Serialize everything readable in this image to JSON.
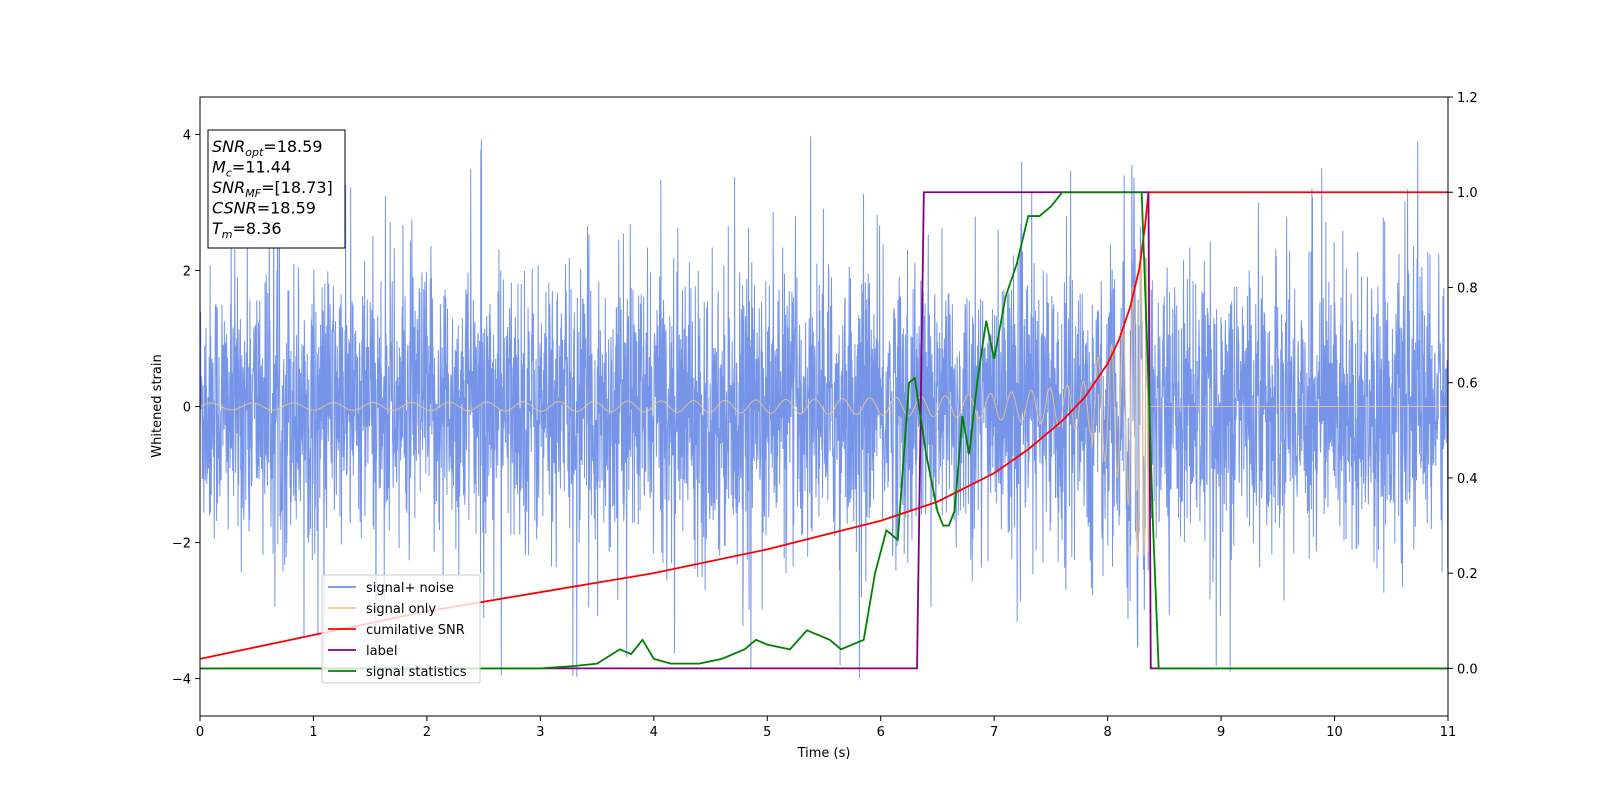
{
  "chart_data": {
    "type": "line",
    "xlabel": "Time (s)",
    "ylabel": "Whitened strain",
    "xlim": [
      0,
      11
    ],
    "ylim_left": [
      -4.55,
      4.55
    ],
    "ylim_right": [
      -0.1,
      1.2
    ],
    "x_ticks": [
      "0",
      "1",
      "2",
      "3",
      "4",
      "5",
      "6",
      "7",
      "8",
      "9",
      "10",
      "11"
    ],
    "y_ticks_left": [
      "4",
      "2",
      "0",
      "−2",
      "−4"
    ],
    "y_ticks_left_values": [
      4,
      2,
      0,
      -2,
      -4
    ],
    "y_ticks_right": [
      "1.2",
      "1.0",
      "0.8",
      "0.6",
      "0.4",
      "0.2",
      "0.0"
    ],
    "y_ticks_right_values": [
      1.2,
      1.0,
      0.8,
      0.6,
      0.4,
      0.2,
      0.0
    ],
    "grid": false,
    "legend_placement": "lower-left",
    "series": [
      {
        "name": "signal+ noise",
        "color": "#6f8fe8",
        "axis": "left",
        "description_values": {
          "noise_amplitude_typical": 1.3,
          "noise_amplitude_peak": 3.9,
          "merger_time": 8.36
        }
      },
      {
        "name": "signal only",
        "color": "#f5c77e",
        "axis": "left",
        "chirp": {
          "start_amplitude": 0.05,
          "peak_amplitude": 2.2,
          "merger_time": 8.36
        }
      },
      {
        "name": "cumilative SNR",
        "color": "#ff0000",
        "axis": "right",
        "x": [
          0,
          1,
          2,
          3,
          4,
          5,
          5.5,
          6,
          6.5,
          7,
          7.3,
          7.6,
          7.8,
          8.0,
          8.1,
          8.2,
          8.28,
          8.33,
          8.36,
          8.4,
          11
        ],
        "y": [
          0.02,
          0.07,
          0.12,
          0.16,
          0.2,
          0.25,
          0.28,
          0.31,
          0.35,
          0.41,
          0.46,
          0.52,
          0.57,
          0.64,
          0.69,
          0.76,
          0.84,
          0.93,
          1.0,
          1.0,
          1.0
        ]
      },
      {
        "name": "label",
        "color": "#800080",
        "axis": "right",
        "x": [
          0,
          6.32,
          6.38,
          8.3,
          8.32,
          8.36,
          8.38,
          11
        ],
        "y": [
          0.0,
          0.0,
          1.0,
          1.0,
          1.0,
          1.0,
          0.0,
          0.0
        ]
      },
      {
        "name": "signal statistics",
        "color": "#008000",
        "axis": "right",
        "x": [
          0,
          0.5,
          1,
          2,
          3,
          3.3,
          3.5,
          3.7,
          3.8,
          3.9,
          4.0,
          4.15,
          4.4,
          4.6,
          4.8,
          4.9,
          5.0,
          5.2,
          5.35,
          5.45,
          5.55,
          5.65,
          5.75,
          5.85,
          5.95,
          6.05,
          6.15,
          6.25,
          6.3,
          6.4,
          6.5,
          6.55,
          6.6,
          6.65,
          6.72,
          6.78,
          6.85,
          6.93,
          7.0,
          7.1,
          7.2,
          7.3,
          7.4,
          7.5,
          7.6,
          7.8,
          8.0,
          8.3,
          8.33,
          8.36,
          8.4,
          8.45,
          11
        ],
        "y": [
          0.0,
          0.0,
          0.0,
          0.0,
          0.0,
          0.005,
          0.01,
          0.04,
          0.03,
          0.06,
          0.02,
          0.01,
          0.01,
          0.02,
          0.04,
          0.06,
          0.05,
          0.04,
          0.08,
          0.07,
          0.06,
          0.04,
          0.05,
          0.06,
          0.2,
          0.29,
          0.27,
          0.6,
          0.61,
          0.45,
          0.33,
          0.3,
          0.3,
          0.33,
          0.53,
          0.45,
          0.6,
          0.73,
          0.65,
          0.78,
          0.85,
          0.95,
          0.95,
          0.97,
          1.0,
          1.0,
          1.0,
          1.0,
          0.8,
          0.6,
          0.3,
          0.0,
          0.0
        ]
      }
    ],
    "annotation_box": {
      "lines": [
        {
          "main": "SNR",
          "sub": "opt",
          "value": "=18.59"
        },
        {
          "main": "M",
          "sub": "c",
          "value": "=11.44"
        },
        {
          "main": "SNR",
          "sub": "MF",
          "value": "=[18.73]"
        },
        {
          "main": "CSNR",
          "sub": "",
          "value": "=18.59"
        },
        {
          "main": "T",
          "sub": "m",
          "value": "=8.36"
        }
      ]
    }
  }
}
